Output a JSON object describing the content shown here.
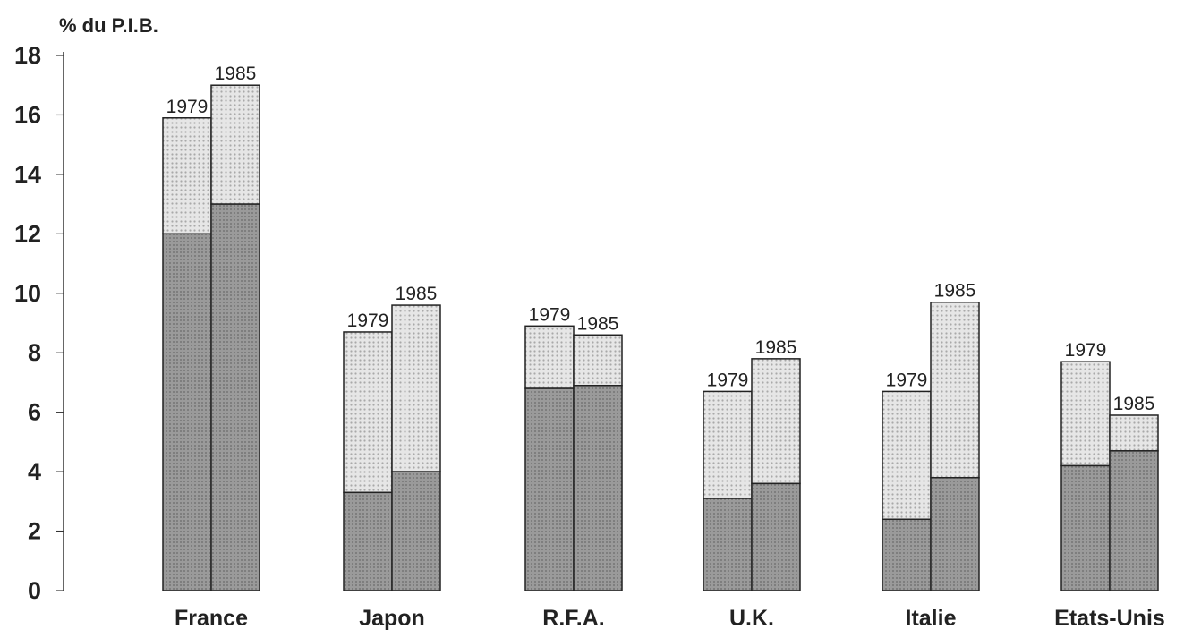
{
  "chart_data": {
    "type": "bar",
    "stacked": true,
    "ylabel": "% du P.I.B.",
    "ylim": [
      0,
      18
    ],
    "yticks": [
      0,
      2,
      4,
      6,
      8,
      10,
      12,
      14,
      16,
      18
    ],
    "categories": [
      "France",
      "Japon",
      "R.F.A.",
      "U.K.",
      "Italie",
      "Etats-Unis"
    ],
    "years": [
      "1979",
      "1985"
    ],
    "segment_colors": {
      "lower": "#8f8f8f",
      "upper": "#d6d6d6"
    },
    "groups": [
      {
        "category": "France",
        "bars": [
          {
            "year": "1979",
            "lower": 12.0,
            "total": 15.9
          },
          {
            "year": "1985",
            "lower": 13.0,
            "total": 17.0
          }
        ]
      },
      {
        "category": "Japon",
        "bars": [
          {
            "year": "1979",
            "lower": 3.3,
            "total": 8.7
          },
          {
            "year": "1985",
            "lower": 4.0,
            "total": 9.6
          }
        ]
      },
      {
        "category": "R.F.A.",
        "bars": [
          {
            "year": "1979",
            "lower": 6.8,
            "total": 8.9
          },
          {
            "year": "1985",
            "lower": 6.9,
            "total": 8.6
          }
        ]
      },
      {
        "category": "U.K.",
        "bars": [
          {
            "year": "1979",
            "lower": 3.1,
            "total": 6.7
          },
          {
            "year": "1985",
            "lower": 3.6,
            "total": 7.8
          }
        ]
      },
      {
        "category": "Italie",
        "bars": [
          {
            "year": "1979",
            "lower": 2.4,
            "total": 6.7
          },
          {
            "year": "1985",
            "lower": 3.8,
            "total": 9.7
          }
        ]
      },
      {
        "category": "Etats-Unis",
        "bars": [
          {
            "year": "1979",
            "lower": 4.2,
            "total": 7.7
          },
          {
            "year": "1985",
            "lower": 4.7,
            "total": 5.9
          }
        ]
      }
    ]
  }
}
